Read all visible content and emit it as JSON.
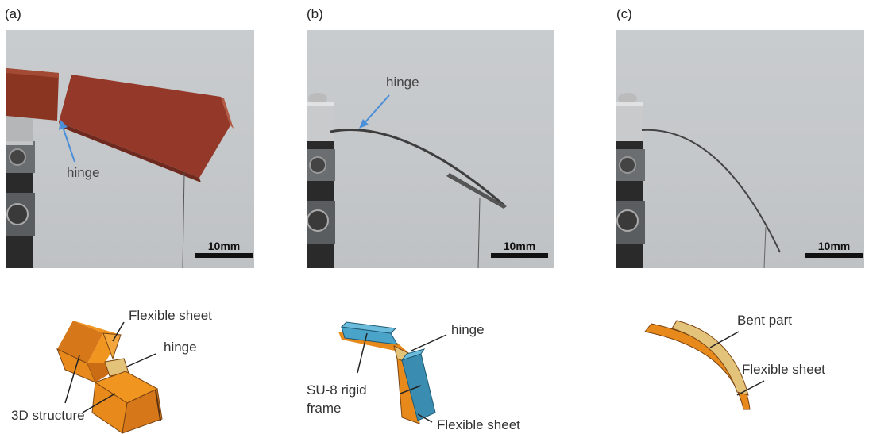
{
  "panels": [
    {
      "label": "(a)",
      "photo": {
        "hinge_label": "hinge",
        "scale_label": "10mm"
      },
      "diagram": {
        "label_flexible": "Flexible sheet",
        "label_hinge": "hinge",
        "label_structure": "3D structure"
      }
    },
    {
      "label": "(b)",
      "photo": {
        "hinge_label": "hinge",
        "scale_label": "10mm"
      },
      "diagram": {
        "label_hinge": "hinge",
        "label_frame_1": "SU-8 rigid",
        "label_frame_2": "frame",
        "label_flexible": "Flexible sheet"
      }
    },
    {
      "label": "(c)",
      "photo": {
        "scale_label": "10mm"
      },
      "diagram": {
        "label_bent": "Bent part",
        "label_flexible": "Flexible sheet"
      }
    }
  ],
  "colors": {
    "orange": "#e8891c",
    "blue": "#3a8db0",
    "tan": "#e3c27a",
    "brown": "#9a3e2a",
    "arrow": "#4a8fd8"
  }
}
